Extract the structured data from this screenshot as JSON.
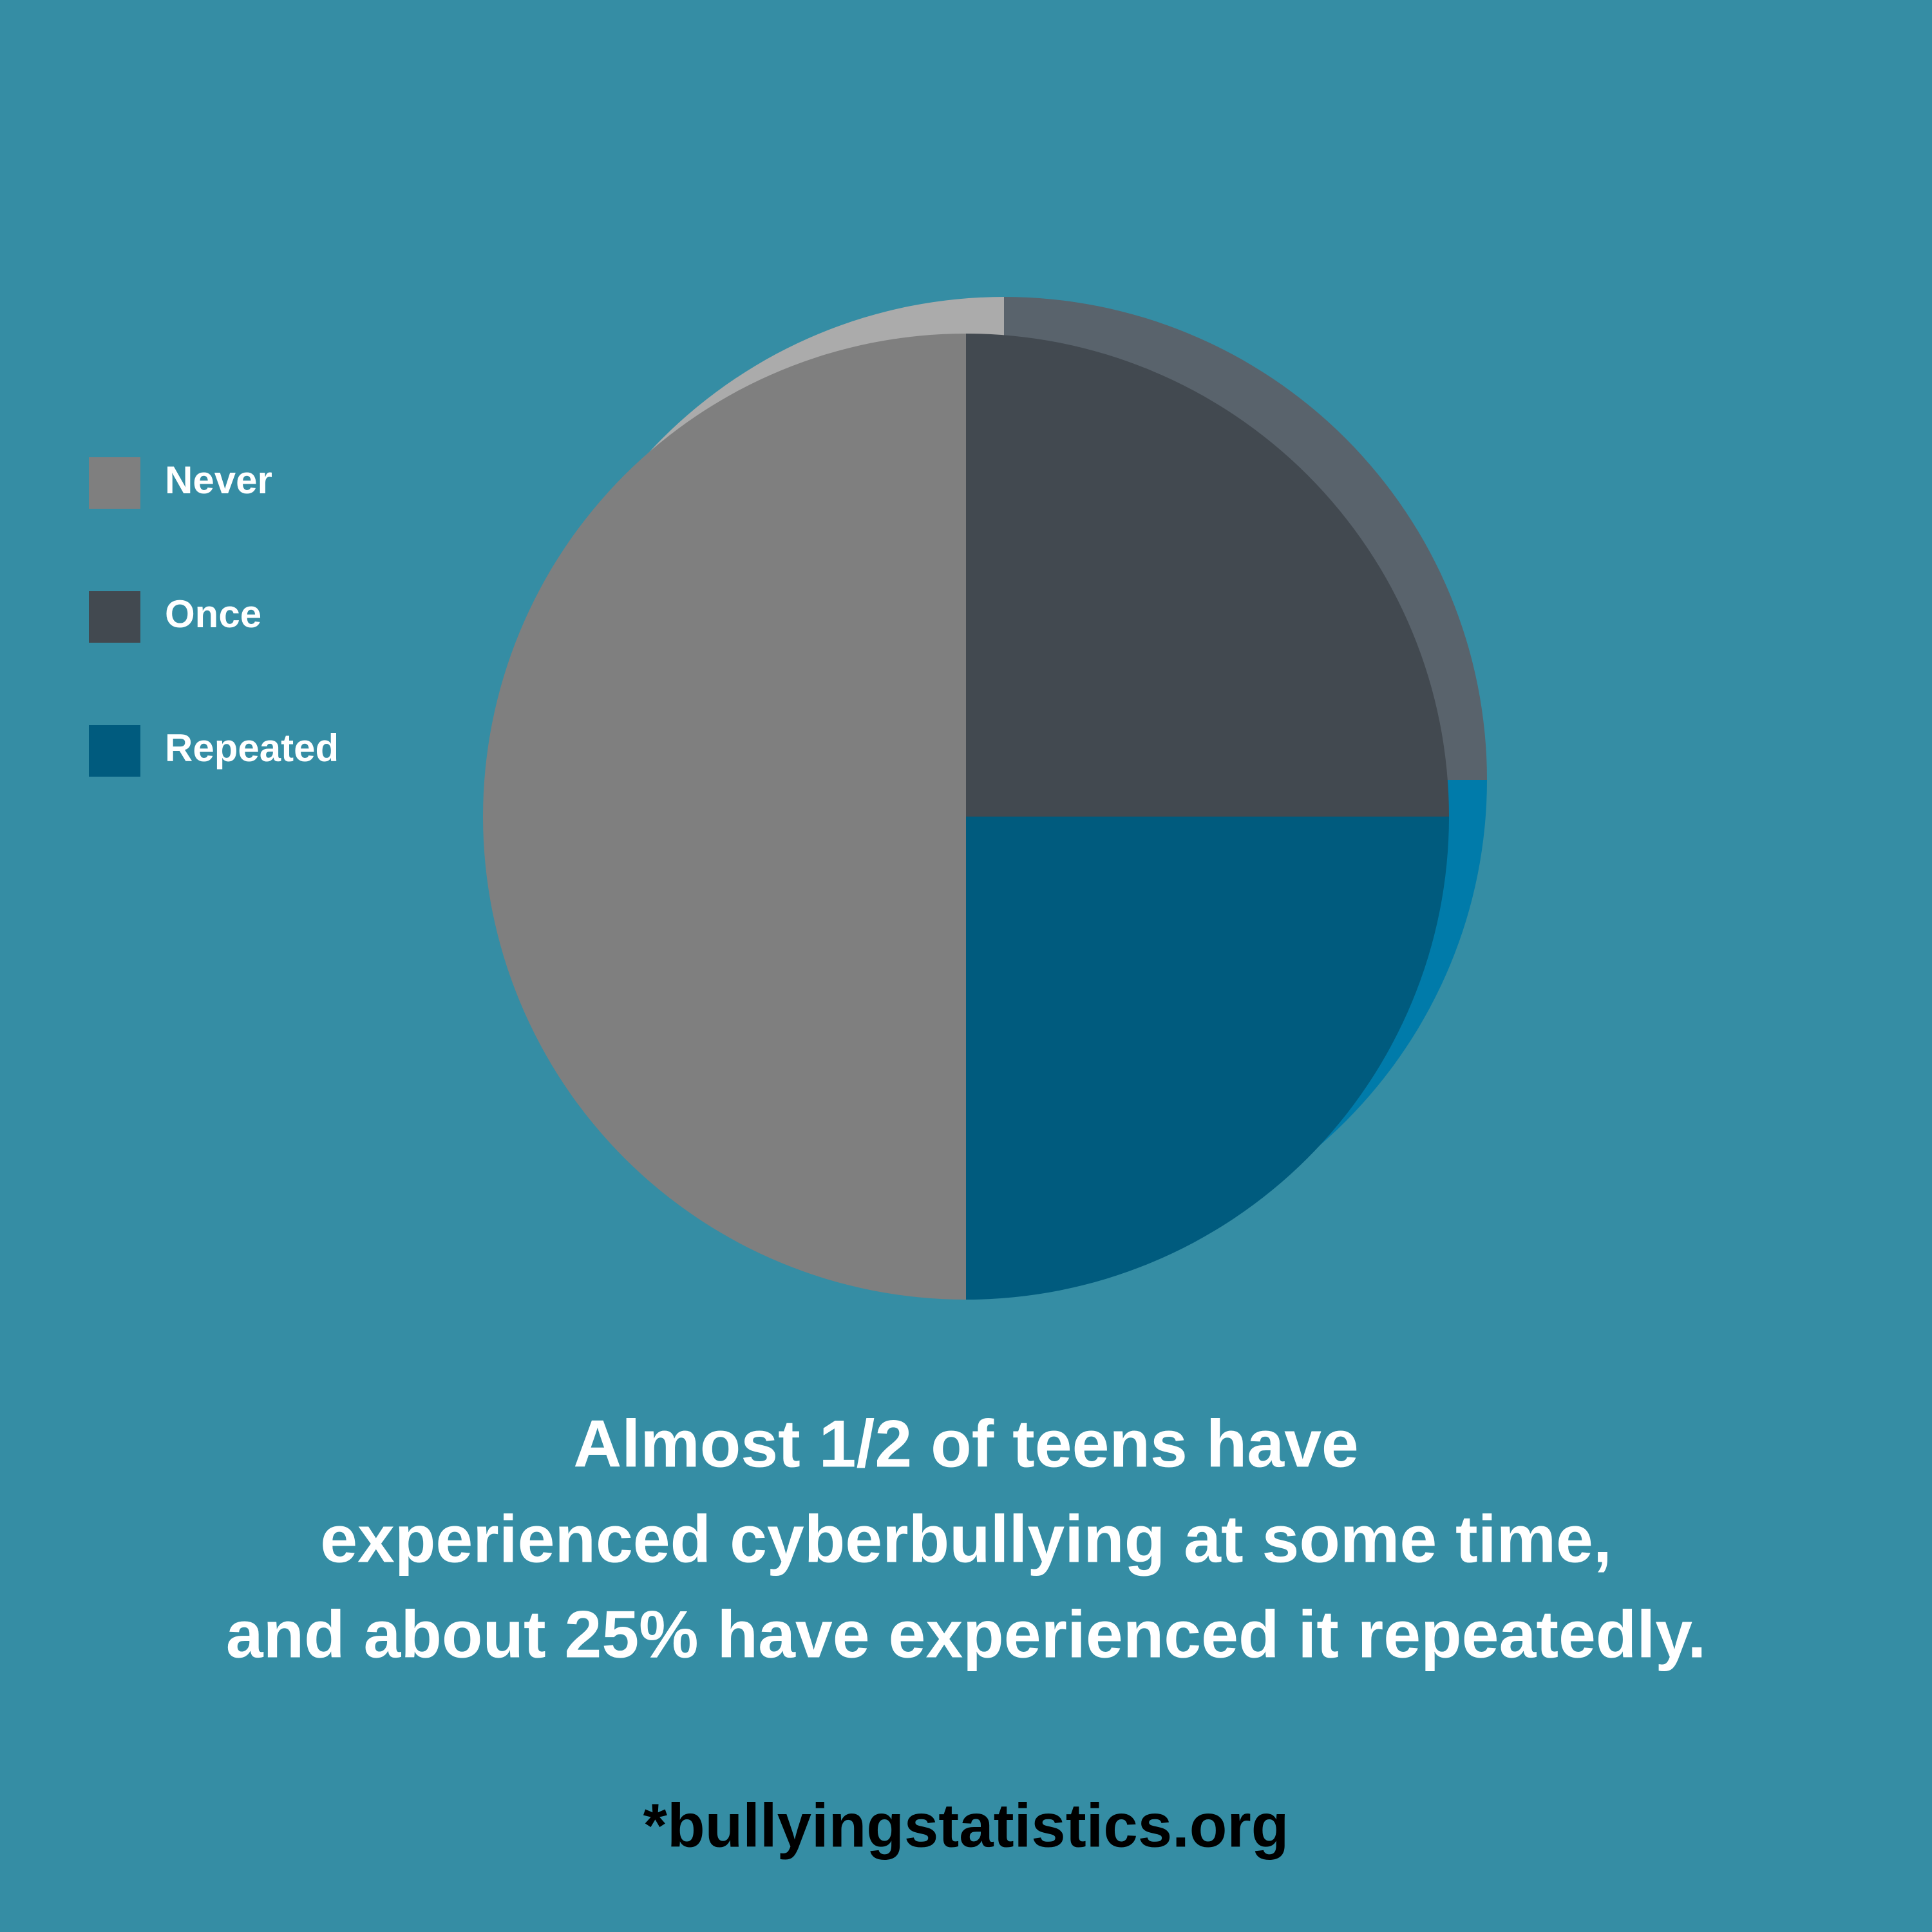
{
  "chart_data": {
    "type": "pie",
    "categories": [
      "Never",
      "Once",
      "Repeated"
    ],
    "values": [
      50,
      25,
      25
    ],
    "colors": [
      "#7f7f7f",
      "#424950",
      "#005b7e"
    ]
  },
  "caption": [
    "Almost 1/2 of teens have",
    "experienced cyberbullying at some time,",
    "and about 25% have experienced it repeatedly."
  ],
  "source": "*bullyingstatistics.org"
}
